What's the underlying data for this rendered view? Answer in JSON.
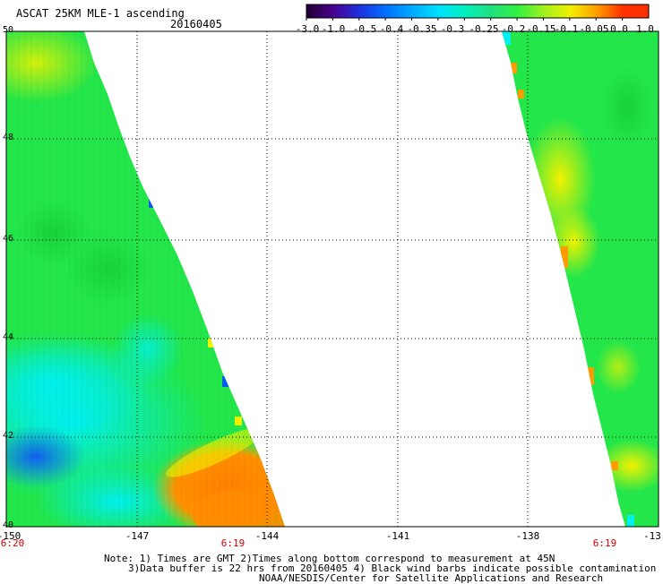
{
  "header": {
    "title": "ASCAT 25KM MLE-1 ascending",
    "date": "20160405"
  },
  "colorbar": {
    "labels": [
      "-3.0",
      "-1.0",
      "-0.5",
      "-0.4",
      "-0.35",
      "-0.3",
      "-0.25",
      "-0.2",
      "-0.15",
      "-0.1",
      "-0.05",
      "0.0",
      "1.0"
    ],
    "colors": [
      "#200030",
      "#4a0090",
      "#2030e0",
      "#0070ff",
      "#00a8ff",
      "#00e0ff",
      "#00f0c0",
      "#20e080",
      "#30f040",
      "#a0f020",
      "#f0f000",
      "#ffa000",
      "#ff3000"
    ]
  },
  "map": {
    "lat_labels": [
      "50",
      "48",
      "46",
      "44",
      "42",
      "40"
    ],
    "lon_labels": [
      "-150",
      "-147",
      "-144",
      "-141",
      "-138",
      "-13"
    ],
    "time_labels": [
      "6:20",
      "6:19",
      "6:19"
    ],
    "colors": {
      "green": "#22e64a",
      "green_dark": "#18d23a",
      "yellowgreen": "#b8f000",
      "yellow": "#f2f200",
      "cyan": "#00f0f0",
      "aqua": "#00e8c0",
      "blue": "#0a5cf0",
      "orange": "#ff8c00",
      "grid": "#000000"
    }
  },
  "notes": {
    "line1": "Note: 1) Times are GMT 2)Times along bottom correspond to measurement at 45N",
    "line2": "3)Data buffer is 22 hrs from 20160405 4) Black wind barbs indicate possible contamination",
    "line3": "NOAA/NESDIS/Center for Satellite Applications and Research"
  }
}
